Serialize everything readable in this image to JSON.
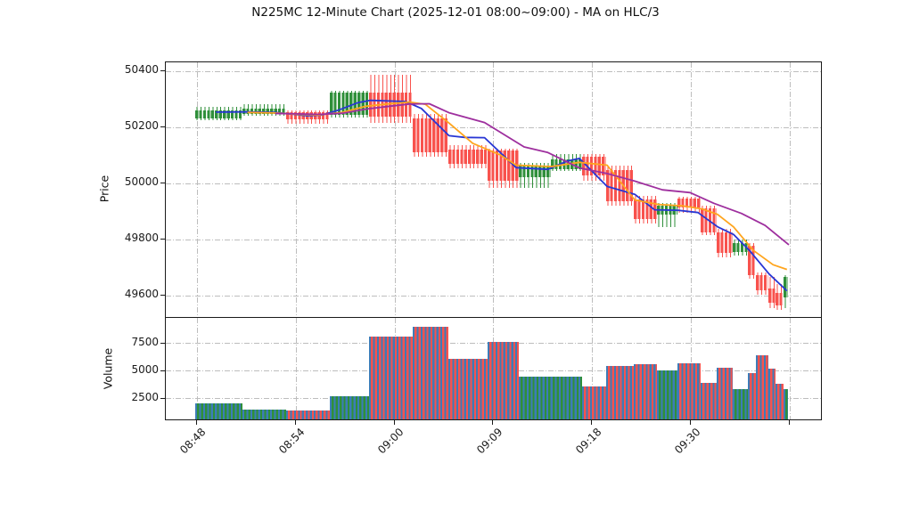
{
  "title": "N225MC 12-Minute Chart (2025-12-01 08:00~09:00) - MA on HLC/3",
  "price_axis": {
    "label": "Price",
    "ticks": [
      50400,
      50200,
      50000,
      49800,
      49600
    ]
  },
  "volume_axis": {
    "label": "Volume",
    "ticks": [
      7500,
      5000,
      2500
    ]
  },
  "x_axis": {
    "ticks": [
      {
        "index": 0,
        "label": "08:48"
      },
      {
        "index": 25,
        "label": "08:54"
      },
      {
        "index": 50,
        "label": "09:00"
      },
      {
        "index": 75,
        "label": "09:09"
      },
      {
        "index": 100,
        "label": "09:18"
      },
      {
        "index": 125,
        "label": "09:30"
      },
      {
        "index": 150,
        "label": ""
      }
    ]
  },
  "colors": {
    "up": "#2f8f3a",
    "down": "#f8524d",
    "volume_fill": "#3c7cb8",
    "ma_fast": "#2836d4",
    "ma_mid": "#ffa51e",
    "ma_slow": "#9e2f9e",
    "grid": "#bdbdbd",
    "spine": "#1a1a1a"
  },
  "chart_data": {
    "type": "candlestick_with_volume",
    "x_unit": "bar_index",
    "price_range": [
      49520,
      50430
    ],
    "volume_range": [
      0,
      10000
    ],
    "grid": true,
    "candle_blocks": [
      {
        "start": 0,
        "end": 12,
        "dir": "up",
        "body_low": 50233,
        "body_high": 50260,
        "wick_low": 50224,
        "wick_high": 50272,
        "volume": 2000
      },
      {
        "start": 12,
        "end": 23,
        "dir": "up",
        "body_low": 50249,
        "body_high": 50266,
        "wick_low": 50240,
        "wick_high": 50281,
        "volume": 1400
      },
      {
        "start": 23,
        "end": 34,
        "dir": "down",
        "body_low": 50229,
        "body_high": 50254,
        "wick_low": 50213,
        "wick_high": 50260,
        "volume": 1300
      },
      {
        "start": 34,
        "end": 44,
        "dir": "up",
        "body_low": 50245,
        "body_high": 50324,
        "wick_low": 50235,
        "wick_high": 50331,
        "volume": 2620
      },
      {
        "start": 44,
        "end": 55,
        "dir": "down",
        "body_low": 50238,
        "body_high": 50324,
        "wick_low": 50216,
        "wick_high": 50388,
        "volume": 8100
      },
      {
        "start": 55,
        "end": 64,
        "dir": "down",
        "body_low": 50111,
        "body_high": 50232,
        "wick_low": 50095,
        "wick_high": 50248,
        "volume": 8950
      },
      {
        "start": 64,
        "end": 74,
        "dir": "down",
        "body_low": 50070,
        "body_high": 50121,
        "wick_low": 50054,
        "wick_high": 50136,
        "volume": 6040
      },
      {
        "start": 74,
        "end": 82,
        "dir": "down",
        "body_low": 50010,
        "body_high": 50117,
        "wick_low": 49984,
        "wick_high": 50125,
        "volume": 7560
      },
      {
        "start": 82,
        "end": 90,
        "dir": "up",
        "body_low": 50022,
        "body_high": 50064,
        "wick_low": 49985,
        "wick_high": 50072,
        "volume": 4390
      },
      {
        "start": 90,
        "end": 98,
        "dir": "up",
        "body_low": 50052,
        "body_high": 50086,
        "wick_low": 50045,
        "wick_high": 50105,
        "volume": 4390
      },
      {
        "start": 98,
        "end": 104,
        "dir": "down",
        "body_low": 50030,
        "body_high": 50095,
        "wick_low": 50008,
        "wick_high": 50105,
        "volume": 3480
      },
      {
        "start": 104,
        "end": 111,
        "dir": "down",
        "body_low": 49936,
        "body_high": 50048,
        "wick_low": 49922,
        "wick_high": 50062,
        "volume": 5350
      },
      {
        "start": 111,
        "end": 117,
        "dir": "down",
        "body_low": 49873,
        "body_high": 49943,
        "wick_low": 49857,
        "wick_high": 49957,
        "volume": 5570
      },
      {
        "start": 117,
        "end": 122,
        "dir": "up",
        "body_low": 49889,
        "body_high": 49921,
        "wick_low": 49843,
        "wick_high": 49930,
        "volume": 5000
      },
      {
        "start": 122,
        "end": 128,
        "dir": "down",
        "body_low": 49914,
        "body_high": 49946,
        "wick_low": 49896,
        "wick_high": 49953,
        "volume": 5630
      },
      {
        "start": 128,
        "end": 132,
        "dir": "down",
        "body_low": 49825,
        "body_high": 49911,
        "wick_low": 49816,
        "wick_high": 49922,
        "volume": 3880
      },
      {
        "start": 132,
        "end": 136,
        "dir": "down",
        "body_low": 49752,
        "body_high": 49825,
        "wick_low": 49738,
        "wick_high": 49837,
        "volume": 5210
      },
      {
        "start": 136,
        "end": 140,
        "dir": "up",
        "body_low": 49757,
        "body_high": 49788,
        "wick_low": 49743,
        "wick_high": 49799,
        "volume": 3260
      },
      {
        "start": 140,
        "end": 142,
        "dir": "down",
        "body_low": 49673,
        "body_high": 49778,
        "wick_low": 49659,
        "wick_high": 49788,
        "volume": 4700
      },
      {
        "start": 142,
        "end": 145,
        "dir": "down",
        "body_low": 49619,
        "body_high": 49673,
        "wick_low": 49602,
        "wick_high": 49684,
        "volume": 6380
      },
      {
        "start": 145,
        "end": 147,
        "dir": "down",
        "body_low": 49575,
        "body_high": 49625,
        "wick_low": 49555,
        "wick_high": 49667,
        "volume": 5160
      },
      {
        "start": 147,
        "end": 149,
        "dir": "down",
        "body_low": 49565,
        "body_high": 49610,
        "wick_low": 49550,
        "wick_high": 49640,
        "volume": 3750
      },
      {
        "start": 149,
        "end": 150,
        "dir": "up",
        "body_low": 49594,
        "body_high": 49666,
        "wick_low": 49556,
        "wick_high": 49672,
        "volume": 3260
      }
    ],
    "ma_lines": [
      {
        "name": "ma-fast",
        "color_key": "ma_fast",
        "points": [
          [
            5,
            50251
          ],
          [
            13,
            50252
          ],
          [
            20,
            50250
          ],
          [
            25,
            50243
          ],
          [
            28,
            50238
          ],
          [
            32,
            50241
          ],
          [
            36,
            50258
          ],
          [
            41,
            50285
          ],
          [
            44,
            50293
          ],
          [
            53,
            50289
          ],
          [
            57,
            50264
          ],
          [
            64,
            50167
          ],
          [
            68,
            50161
          ],
          [
            73,
            50160
          ],
          [
            81,
            50053
          ],
          [
            89,
            50047
          ],
          [
            94,
            50077
          ],
          [
            97,
            50086
          ],
          [
            104,
            49986
          ],
          [
            111,
            49958
          ],
          [
            116,
            49903
          ],
          [
            122,
            49901
          ],
          [
            127,
            49893
          ],
          [
            132,
            49842
          ],
          [
            136,
            49815
          ],
          [
            140,
            49758
          ],
          [
            145,
            49674
          ],
          [
            149.5,
            49614
          ]
        ]
      },
      {
        "name": "ma-mid",
        "color_key": "ma_mid",
        "points": [
          [
            13,
            50250
          ],
          [
            20,
            50248
          ],
          [
            26,
            50243
          ],
          [
            31,
            50241
          ],
          [
            37,
            50250
          ],
          [
            43,
            50272
          ],
          [
            49,
            50281
          ],
          [
            54,
            50287
          ],
          [
            58,
            50279
          ],
          [
            64,
            50212
          ],
          [
            70,
            50140
          ],
          [
            77,
            50098
          ],
          [
            81,
            50062
          ],
          [
            90,
            50057
          ],
          [
            97,
            50072
          ],
          [
            104,
            50062
          ],
          [
            111,
            49938
          ],
          [
            117,
            49922
          ],
          [
            123,
            49917
          ],
          [
            128,
            49906
          ],
          [
            132,
            49886
          ],
          [
            136,
            49842
          ],
          [
            141,
            49758
          ],
          [
            146,
            49707
          ],
          [
            149.5,
            49690
          ]
        ]
      },
      {
        "name": "ma-slow",
        "color_key": "ma_slow",
        "points": [
          [
            20,
            50246
          ],
          [
            25,
            50245
          ],
          [
            31,
            50243
          ],
          [
            37,
            50247
          ],
          [
            43,
            50262
          ],
          [
            49,
            50272
          ],
          [
            54,
            50280
          ],
          [
            59,
            50281
          ],
          [
            64,
            50249
          ],
          [
            73,
            50214
          ],
          [
            83,
            50127
          ],
          [
            89,
            50107
          ],
          [
            97,
            50052
          ],
          [
            104,
            50032
          ],
          [
            111,
            50005
          ],
          [
            118,
            49974
          ],
          [
            125,
            49964
          ],
          [
            131,
            49926
          ],
          [
            138,
            49890
          ],
          [
            144,
            49847
          ],
          [
            150,
            49778
          ]
        ]
      }
    ]
  }
}
